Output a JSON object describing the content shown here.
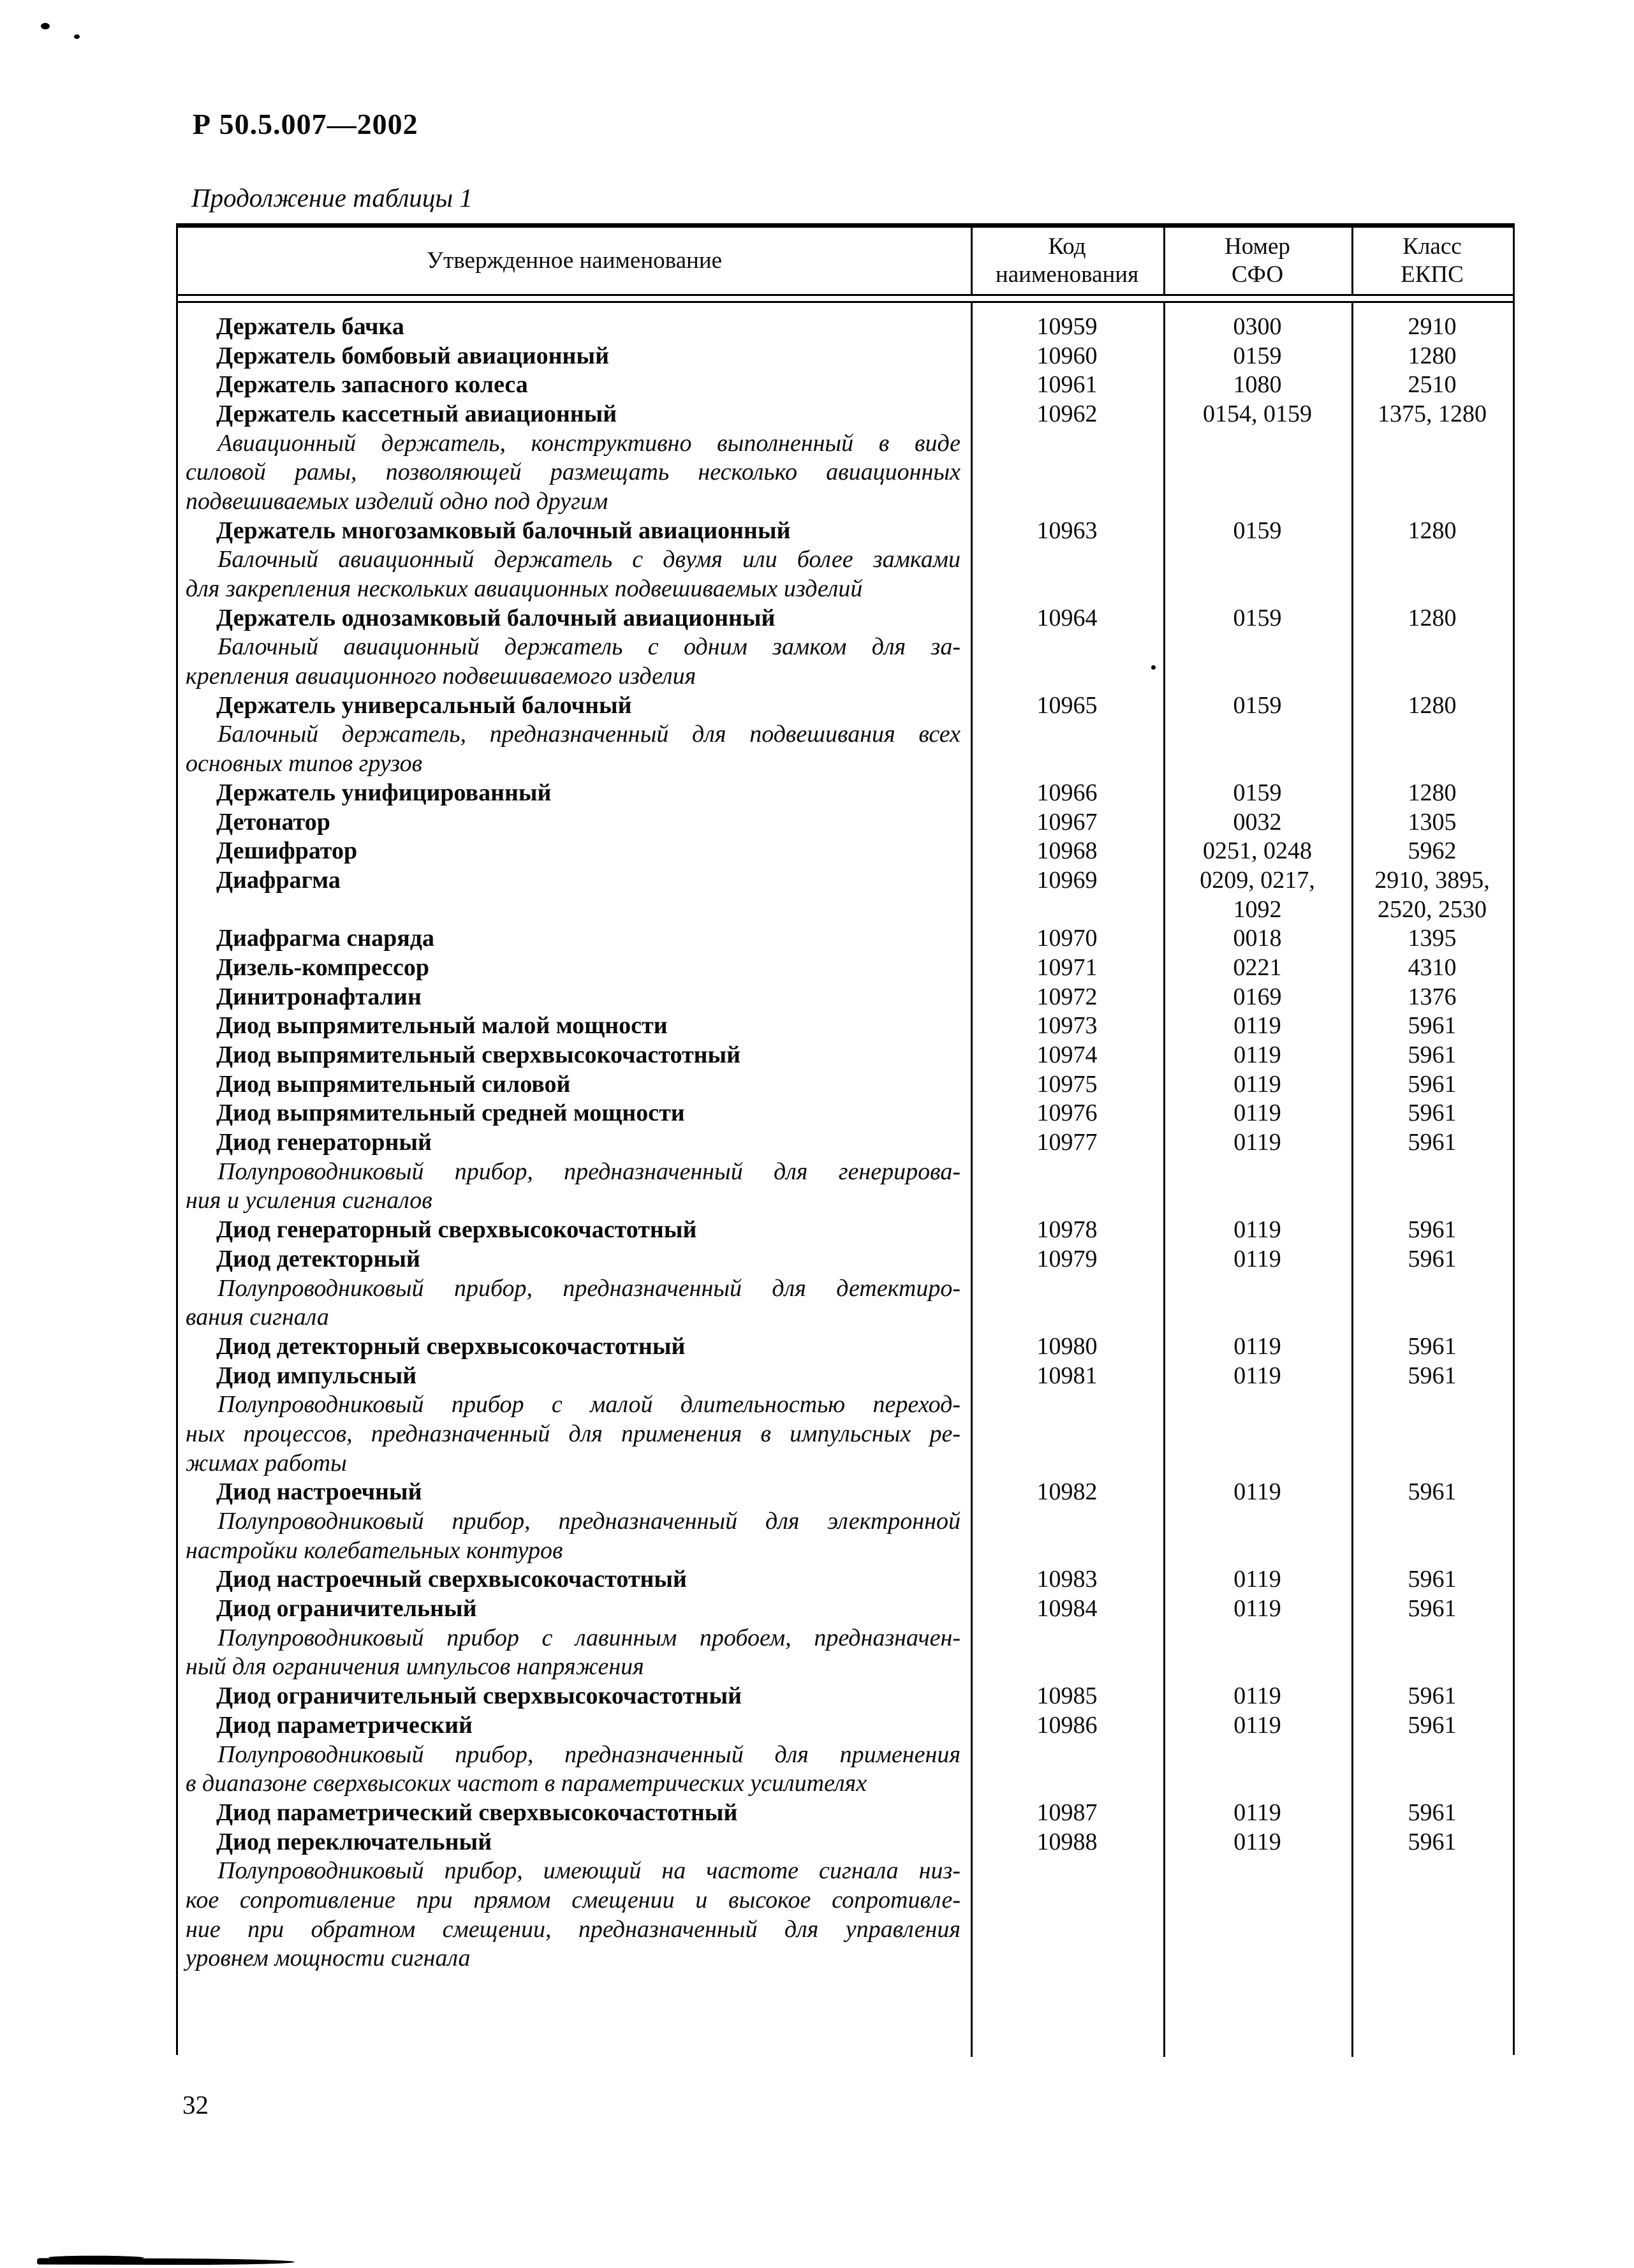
{
  "page": {
    "standard_ref": "Р 50.5.007—2002",
    "table_caption": "Продолжение таблицы 1",
    "page_number": "32"
  },
  "table": {
    "headers": {
      "name": "Утвержденное наименование",
      "code": "Код\nнаименования",
      "sfo": "Номер\nСФО",
      "ekps": "Класс\nЕКПС"
    },
    "rows": [
      {
        "type": "item",
        "name": "Держатель бачка",
        "code": "10959",
        "sfo": "0300",
        "ekps": "2910"
      },
      {
        "type": "item",
        "name": "Держатель бомбовый авиационный",
        "code": "10960",
        "sfo": "0159",
        "ekps": "1280"
      },
      {
        "type": "item",
        "name": "Держатель запасного колеса",
        "code": "10961",
        "sfo": "1080",
        "ekps": "2510"
      },
      {
        "type": "item",
        "name": "Держатель кассетный авиационный",
        "code": "10962",
        "sfo": "0154, 0159",
        "ekps": "1375, 1280"
      },
      {
        "type": "desc",
        "first": true,
        "justify": true,
        "text": "Авиационный держатель, конструктивно выполненный в виде"
      },
      {
        "type": "desc",
        "first": false,
        "justify": true,
        "text": "силовой рамы, позволяющей размещать несколько авиационных"
      },
      {
        "type": "desc",
        "first": false,
        "justify": false,
        "text": "подвешиваемых изделий одно под другим"
      },
      {
        "type": "item",
        "name": "Держатель многозамковый балочный авиационный",
        "code": "10963",
        "sfo": "0159",
        "ekps": "1280"
      },
      {
        "type": "desc",
        "first": true,
        "justify": true,
        "text": "Балочный авиационный держатель с двумя или более замками"
      },
      {
        "type": "desc",
        "first": false,
        "justify": false,
        "text": "для закрепления нескольких авиационных подвешиваемых изделий"
      },
      {
        "type": "item",
        "name": "Держатель однозамковый балочный авиационный",
        "code": "10964",
        "sfo": "0159",
        "ekps": "1280"
      },
      {
        "type": "desc",
        "first": true,
        "justify": true,
        "text": "Балочный авиационный держатель с одним замком для за-"
      },
      {
        "type": "desc",
        "first": false,
        "justify": false,
        "text": "крепления авиационного подвешиваемого изделия"
      },
      {
        "type": "item",
        "name": "Держатель универсальный балочный",
        "code": "10965",
        "sfo": "0159",
        "ekps": "1280"
      },
      {
        "type": "desc",
        "first": true,
        "justify": true,
        "text": "Балочный держатель, предназначенный для подвешивания всех"
      },
      {
        "type": "desc",
        "first": false,
        "justify": false,
        "text": "основных типов грузов"
      },
      {
        "type": "item",
        "name": "Держатель унифицированный",
        "code": "10966",
        "sfo": "0159",
        "ekps": "1280"
      },
      {
        "type": "item",
        "name": "Детонатор",
        "code": "10967",
        "sfo": "0032",
        "ekps": "1305"
      },
      {
        "type": "item",
        "name": "Дешифратор",
        "code": "10968",
        "sfo": "0251, 0248",
        "ekps": "5962"
      },
      {
        "type": "item",
        "name": "Диафрагма",
        "code": "10969",
        "sfo": "0209, 0217,",
        "ekps": "2910, 3895,"
      },
      {
        "type": "nums",
        "name": "",
        "code": "",
        "sfo": "1092",
        "ekps": "2520, 2530"
      },
      {
        "type": "item",
        "name": "Диафрагма снаряда",
        "code": "10970",
        "sfo": "0018",
        "ekps": "1395"
      },
      {
        "type": "item",
        "name": "Дизель-компрессор",
        "code": "10971",
        "sfo": "0221",
        "ekps": "4310"
      },
      {
        "type": "item",
        "name": "Динитронафталин",
        "code": "10972",
        "sfo": "0169",
        "ekps": "1376"
      },
      {
        "type": "item",
        "name": "Диод выпрямительный малой мощности",
        "code": "10973",
        "sfo": "0119",
        "ekps": "5961"
      },
      {
        "type": "item",
        "name": "Диод выпрямительный сверхвысокочастотный",
        "code": "10974",
        "sfo": "0119",
        "ekps": "5961"
      },
      {
        "type": "item",
        "name": "Диод выпрямительный силовой",
        "code": "10975",
        "sfo": "0119",
        "ekps": "5961"
      },
      {
        "type": "item",
        "name": "Диод выпрямительный средней мощности",
        "code": "10976",
        "sfo": "0119",
        "ekps": "5961"
      },
      {
        "type": "item",
        "name": "Диод генераторный",
        "code": "10977",
        "sfo": "0119",
        "ekps": "5961"
      },
      {
        "type": "desc",
        "first": true,
        "justify": true,
        "text": "Полупроводниковый прибор, предназначенный для генерирова-"
      },
      {
        "type": "desc",
        "first": false,
        "justify": false,
        "text": "ния и усиления сигналов"
      },
      {
        "type": "item",
        "name": "Диод генераторный сверхвысокочастотный",
        "code": "10978",
        "sfo": "0119",
        "ekps": "5961"
      },
      {
        "type": "item",
        "name": "Диод детекторный",
        "code": "10979",
        "sfo": "0119",
        "ekps": "5961"
      },
      {
        "type": "desc",
        "first": true,
        "justify": true,
        "text": "Полупроводниковый прибор, предназначенный для детектиро-"
      },
      {
        "type": "desc",
        "first": false,
        "justify": false,
        "text": "вания сигнала"
      },
      {
        "type": "item",
        "name": "Диод детекторный сверхвысокочастотный",
        "code": "10980",
        "sfo": "0119",
        "ekps": "5961"
      },
      {
        "type": "item",
        "name": "Диод импульсный",
        "code": "10981",
        "sfo": "0119",
        "ekps": "5961"
      },
      {
        "type": "desc",
        "first": true,
        "justify": true,
        "text": "Полупроводниковый прибор с малой длительностью переход-"
      },
      {
        "type": "desc",
        "first": false,
        "justify": true,
        "text": "ных процессов, предназначенный для применения в импульсных ре-"
      },
      {
        "type": "desc",
        "first": false,
        "justify": false,
        "text": "жимах работы"
      },
      {
        "type": "item",
        "name": "Диод настроечный",
        "code": "10982",
        "sfo": "0119",
        "ekps": "5961"
      },
      {
        "type": "desc",
        "first": true,
        "justify": true,
        "text": "Полупроводниковый прибор, предназначенный для электронной"
      },
      {
        "type": "desc",
        "first": false,
        "justify": false,
        "text": "настройки колебательных контуров"
      },
      {
        "type": "item",
        "name": "Диод настроечный сверхвысокочастотный",
        "code": "10983",
        "sfo": "0119",
        "ekps": "5961"
      },
      {
        "type": "item",
        "name": "Диод ограничительный",
        "code": "10984",
        "sfo": "0119",
        "ekps": "5961"
      },
      {
        "type": "desc",
        "first": true,
        "justify": true,
        "text": "Полупроводниковый прибор с лавинным пробоем, предназначен-"
      },
      {
        "type": "desc",
        "first": false,
        "justify": false,
        "text": "ный для ограничения импульсов напряжения"
      },
      {
        "type": "item",
        "name": "Диод ограничительный сверхвысокочастотный",
        "code": "10985",
        "sfo": "0119",
        "ekps": "5961"
      },
      {
        "type": "item",
        "name": "Диод параметрический",
        "code": "10986",
        "sfo": "0119",
        "ekps": "5961"
      },
      {
        "type": "desc",
        "first": true,
        "justify": true,
        "text": "Полупроводниковый прибор, предназначенный для применения"
      },
      {
        "type": "desc",
        "first": false,
        "justify": false,
        "text": "в диапазоне сверхвысоких частот в параметрических усилителях"
      },
      {
        "type": "item",
        "name": "Диод параметрический сверхвысокочастотный",
        "code": "10987",
        "sfo": "0119",
        "ekps": "5961"
      },
      {
        "type": "item",
        "name": "Диод переключательный",
        "code": "10988",
        "sfo": "0119",
        "ekps": "5961"
      },
      {
        "type": "desc",
        "first": true,
        "justify": true,
        "text": "Полупроводниковый прибор, имеющий на частоте сигнала низ-"
      },
      {
        "type": "desc",
        "first": false,
        "justify": true,
        "text": "кое сопротивление при прямом смещении и высокое сопротивле-"
      },
      {
        "type": "desc",
        "first": false,
        "justify": true,
        "text": "ние при обратном смещении, предназначенный для управления"
      },
      {
        "type": "desc",
        "first": false,
        "justify": false,
        "text": "уровнем мощности сигнала"
      }
    ]
  }
}
